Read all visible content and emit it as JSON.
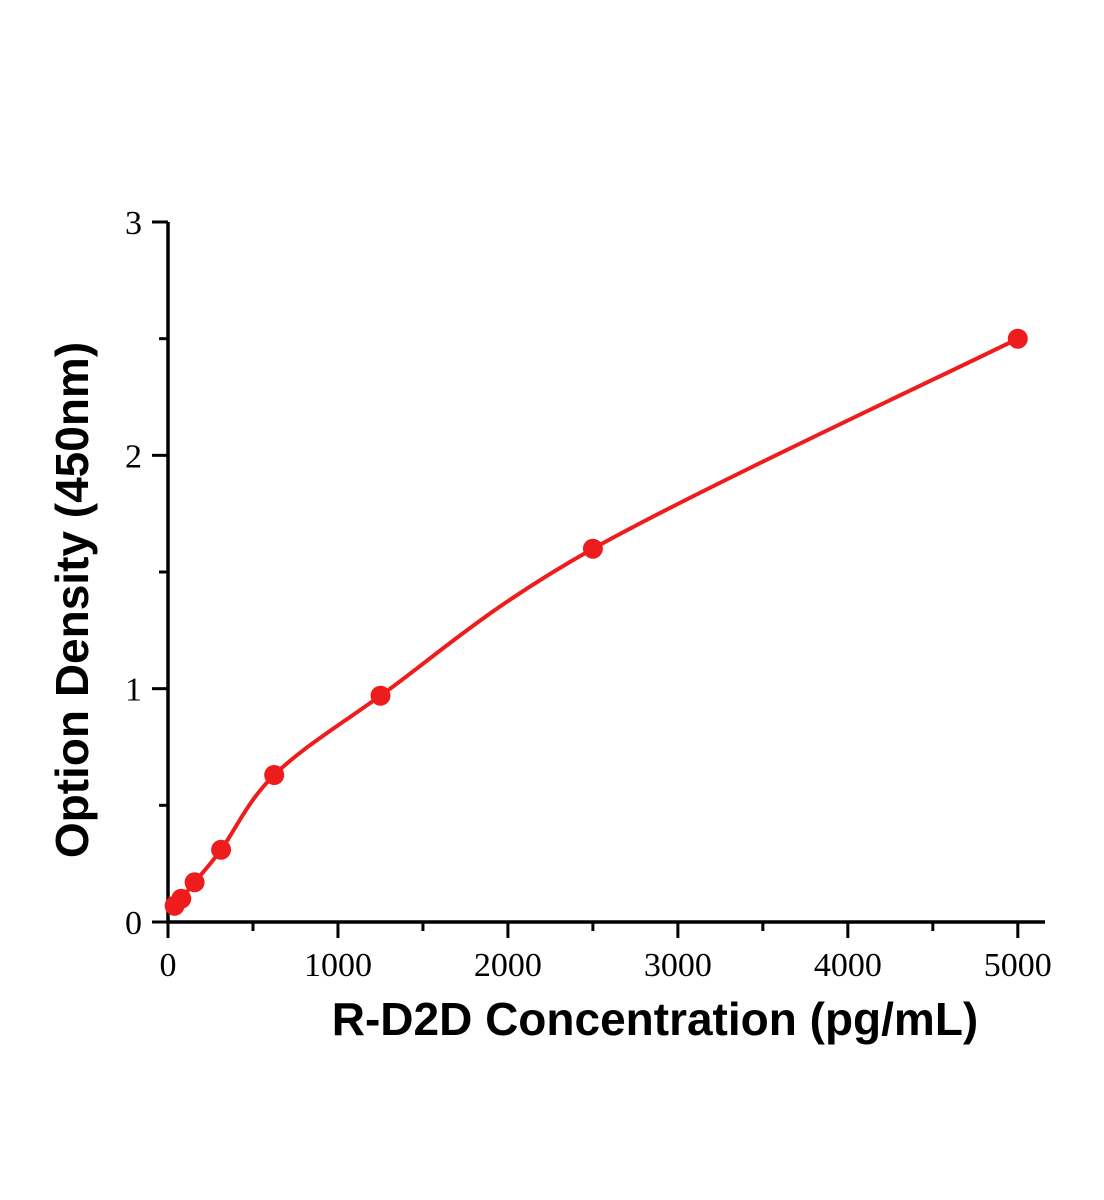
{
  "chart_data": {
    "type": "scatter",
    "title": "",
    "xlabel": "R-D2D Concentration (pg/mL)",
    "ylabel": "Option Density (450nm)",
    "x": [
      39.1,
      78.1,
      156.3,
      312.5,
      625,
      1250,
      2500,
      5000
    ],
    "y": [
      0.07,
      0.1,
      0.17,
      0.31,
      0.63,
      0.97,
      1.6,
      2.5
    ],
    "xlim": [
      0,
      5160
    ],
    "ylim": [
      0,
      3
    ],
    "x_major_ticks": [
      0,
      1000,
      2000,
      3000,
      4000,
      5000
    ],
    "x_minor_ticks": [
      500,
      1500,
      2500,
      3500,
      4500
    ],
    "y_major_ticks": [
      0,
      1,
      2,
      3
    ],
    "y_minor_ticks": [
      0.5,
      1.5,
      2.5
    ],
    "line_color": "#ee1c1c",
    "marker": "circle",
    "marker_radius": 10,
    "grid": false,
    "legend": null,
    "axis_color": "#000000"
  }
}
